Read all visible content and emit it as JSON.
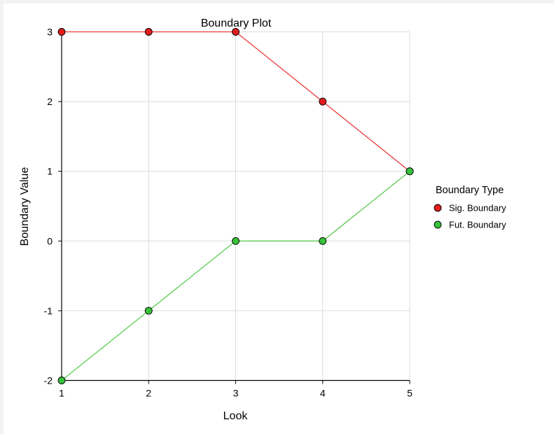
{
  "chart_data": {
    "type": "line",
    "title": "Boundary Plot",
    "xlabel": "Look",
    "ylabel": "Boundary Value",
    "x": [
      1,
      2,
      3,
      4,
      5
    ],
    "xlim": [
      1,
      5
    ],
    "ylim": [
      -2,
      3
    ],
    "xticks": [
      "1",
      "2",
      "3",
      "4",
      "5"
    ],
    "yticks": [
      "-2",
      "-1",
      "0",
      "1",
      "2",
      "3"
    ],
    "grid": true,
    "legend": {
      "title": "Boundary Type",
      "placement": "right"
    },
    "series": [
      {
        "name": "Sig. Boundary",
        "values": [
          3,
          3,
          3,
          2,
          1
        ],
        "line_color": "#e8393a",
        "marker_color": "#e11d1d"
      },
      {
        "name": "Fut. Boundary",
        "values": [
          -2,
          -1,
          0,
          0,
          1
        ],
        "line_color": "#5ccc52",
        "marker_color": "#37c23a"
      }
    ]
  }
}
